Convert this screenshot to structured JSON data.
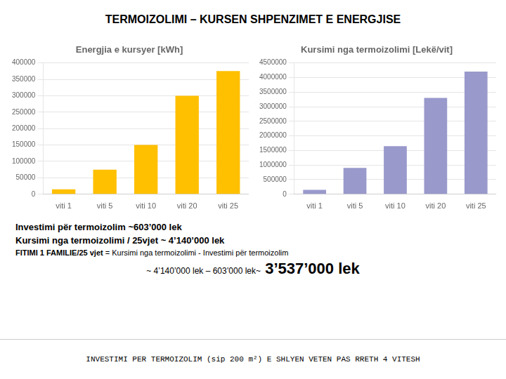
{
  "title": "TERMOIZOLIMI – KURSEN SHPENZIMET E ENERGJISE",
  "chart_data": [
    {
      "type": "bar",
      "title": "Energjia e kursyer [kWh]",
      "categories": [
        "viti 1",
        "viti 5",
        "viti 10",
        "viti 20",
        "viti 25"
      ],
      "values": [
        15000,
        75000,
        150000,
        300000,
        375000
      ],
      "color": "#FFC000",
      "ylim": [
        0,
        400000
      ],
      "yticks": [
        0,
        50000,
        100000,
        150000,
        200000,
        250000,
        300000,
        350000,
        400000
      ],
      "grid": true
    },
    {
      "type": "bar",
      "title": "Kursimi nga termoizolimi [Lekë/vit]",
      "categories": [
        "viti 1",
        "viti 5",
        "viti 10",
        "viti 20",
        "viti 25"
      ],
      "values": [
        150000,
        900000,
        1650000,
        3300000,
        4200000
      ],
      "color": "#9999CC",
      "ylim": [
        0,
        4500000
      ],
      "yticks": [
        0,
        500000,
        1000000,
        1500000,
        2000000,
        2500000,
        3000000,
        3500000,
        4000000,
        4500000
      ],
      "grid": true
    }
  ],
  "texts": [
    [
      "Investimi për termoizolim ",
      "~603’000 lek"
    ],
    [
      "Kursimi nga termoizolimi / 25vjet ",
      "~ 4’140’000 lek"
    ],
    [
      "FITIMI 1 FAMILIE/25 vjet",
      " = Kursimi nga termoizolimi - Investimi për termoizolim"
    ],
    [
      "~ 4’140’000 lek – 603’000 lek~",
      " 3’537’000 lek"
    ]
  ],
  "footer": "INVESTIMI PER TERMOIZOLIM (sip 200 m²) E SHLYEN VETEN PAS RRETH 4 VITESH"
}
